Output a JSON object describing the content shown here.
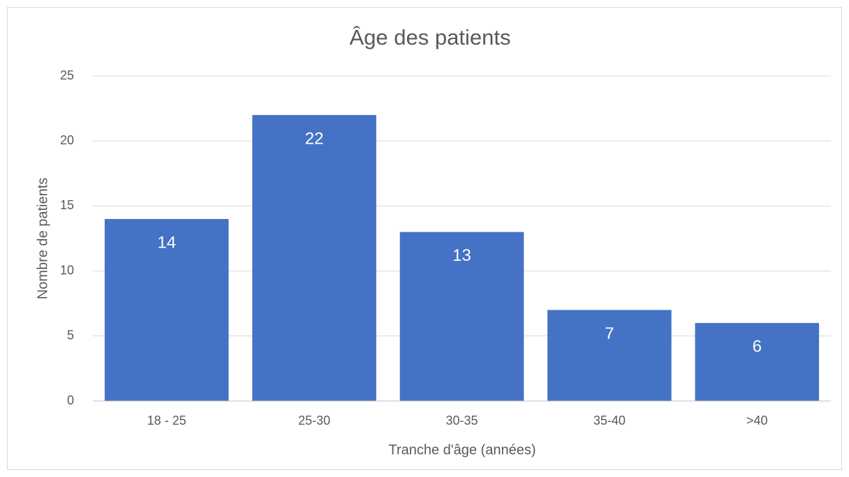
{
  "chart_data": {
    "type": "bar",
    "title": "Âge des patients",
    "x_label": "Tranche d'âge (années)",
    "y_label": "Nombre de patients",
    "categories": [
      "18 - 25",
      "25-30",
      "30-35",
      "35-40",
      ">40"
    ],
    "values": [
      14,
      22,
      13,
      7,
      6
    ],
    "color": "#4472c4",
    "ylim": [
      0,
      25
    ],
    "yticks": [
      0,
      5,
      10,
      15,
      20,
      25
    ],
    "grid": true
  }
}
